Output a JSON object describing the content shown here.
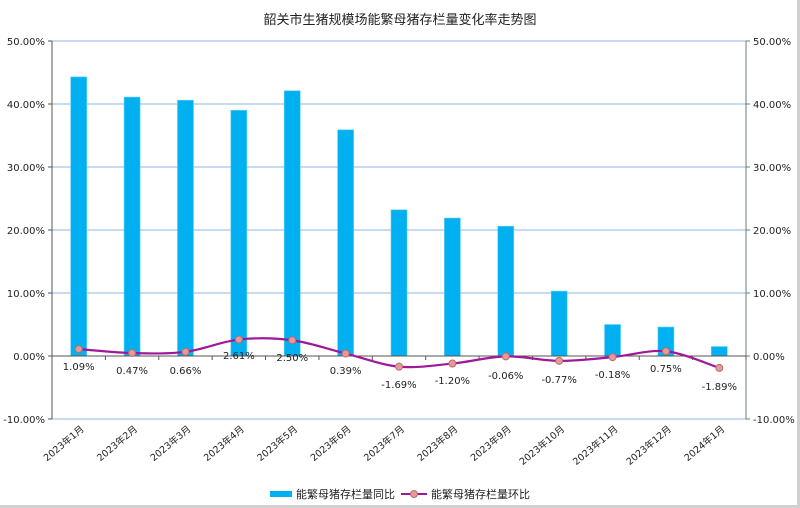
{
  "chart_data": {
    "type": "bar+line",
    "title": "韶关市生猪规模场能繁母猪存栏量变化率走势图",
    "categories": [
      "2023年1月",
      "2023年2月",
      "2023年3月",
      "2023年4月",
      "2023年5月",
      "2023年6月",
      "2023年7月",
      "2023年8月",
      "2023年9月",
      "2023年10月",
      "2023年11月",
      "2023年12月",
      "2024年1月"
    ],
    "series": [
      {
        "name": "能繁母猪存栏量同比",
        "type": "bar",
        "color": "#00b0f0",
        "unit": "%",
        "values": [
          44.3,
          41.1,
          40.6,
          39.0,
          42.1,
          35.9,
          23.2,
          21.9,
          20.6,
          10.3,
          5.0,
          4.6,
          1.5
        ]
      },
      {
        "name": "能繁母猪存栏量环比",
        "type": "line",
        "color": "#a0189a",
        "marker_color": "#e39a9a",
        "unit": "%",
        "values": [
          1.09,
          0.47,
          0.66,
          2.61,
          2.5,
          0.39,
          -1.69,
          -1.2,
          -0.06,
          -0.77,
          -0.18,
          0.75,
          -1.89
        ],
        "labels": [
          "1.09%",
          "0.47%",
          "0.66%",
          "2.61%",
          "2.50%",
          "0.39%",
          "-1.69%",
          "-1.20%",
          "-0.06%",
          "-0.77%",
          "-0.18%",
          "0.75%",
          "-1.89%"
        ]
      }
    ],
    "y_axis_left": {
      "ticks": [
        "50.00%",
        "40.00%",
        "30.00%",
        "20.00%",
        "10.00%",
        "0.00%",
        "-10.00%"
      ],
      "range": [
        -10,
        50
      ]
    },
    "y_axis_right": {
      "ticks": [
        "50.00%",
        "40.00%",
        "30.00%",
        "20.00%",
        "10.00%",
        "0.00%",
        "-10.00%"
      ],
      "range": [
        -10,
        50
      ]
    },
    "grid": true,
    "legend_position": "bottom",
    "xlabel": "",
    "ylabel": ""
  },
  "legend": {
    "bar_label": "能繁母猪存栏量同比",
    "line_label": "能繁母猪存栏量环比"
  }
}
